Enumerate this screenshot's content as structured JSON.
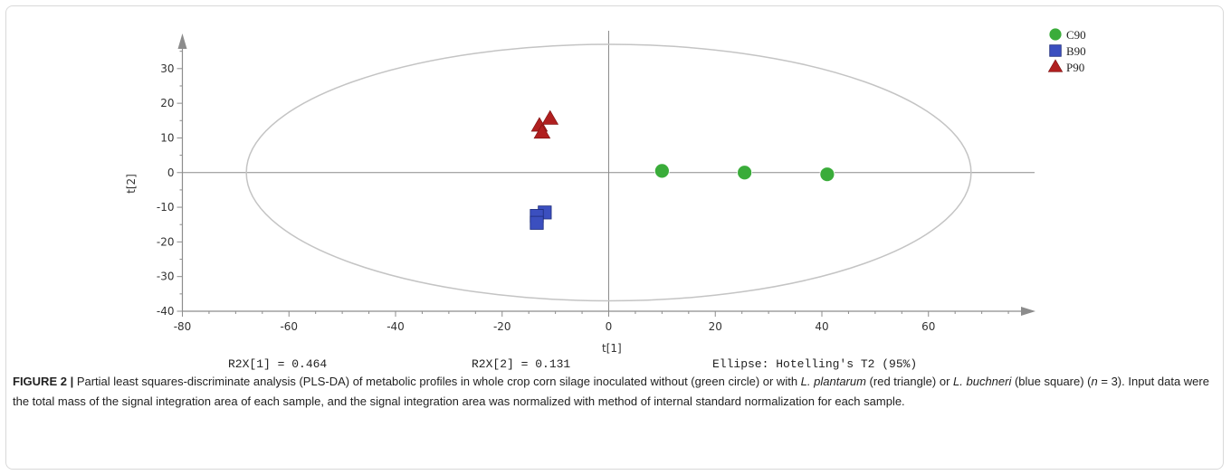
{
  "chart_data": {
    "type": "scatter",
    "xlabel": "t[1]",
    "ylabel": "t[2]",
    "xlim": [
      -80,
      80
    ],
    "ylim": [
      -40,
      37
    ],
    "x_ticks": [
      -80,
      -60,
      -40,
      -20,
      0,
      20,
      40,
      60
    ],
    "y_ticks": [
      -40,
      -30,
      -20,
      -10,
      0,
      10,
      20,
      30
    ],
    "grid": false,
    "legend_position": "top-right",
    "series": [
      {
        "name": "C90",
        "marker": "circle",
        "color": "#3aac3a",
        "points": [
          [
            10,
            0.5
          ],
          [
            25.5,
            0
          ],
          [
            41,
            -0.5
          ]
        ]
      },
      {
        "name": "B90",
        "marker": "square",
        "color": "#3b4fbf",
        "points": [
          [
            -12,
            -11.5
          ],
          [
            -13.5,
            -12.5
          ],
          [
            -13.5,
            -14.5
          ]
        ]
      },
      {
        "name": "P90",
        "marker": "triangle",
        "color": "#b01f1f",
        "points": [
          [
            -11,
            15.5
          ],
          [
            -13,
            13.5
          ],
          [
            -12.5,
            11.5
          ]
        ]
      }
    ],
    "ellipse": {
      "center": [
        0,
        0
      ],
      "semi_axis_x": 68,
      "semi_axis_y": 37,
      "color": "#c4c4c4"
    },
    "annotations": {
      "r2x1": "R2X[1] = 0.464",
      "r2x2": "R2X[2] = 0.131",
      "ellipse_label": "Ellipse: Hotelling's T2 (95%)"
    }
  },
  "caption": {
    "label": "FIGURE 2 |",
    "t1": " Partial least squares-discriminate analysis (PLS-DA) of metabolic profiles in whole crop corn silage inoculated without (green circle) or with ",
    "i1": "L. plantarum",
    "t2": " (red triangle) or ",
    "i2": "L. buchneri",
    "t3": " (blue square) (",
    "i3": "n",
    "t4": " = 3). Input data were the total mass of the signal integration area of each sample, and the signal integration area was normalized with method of internal standard normalization for each sample."
  }
}
